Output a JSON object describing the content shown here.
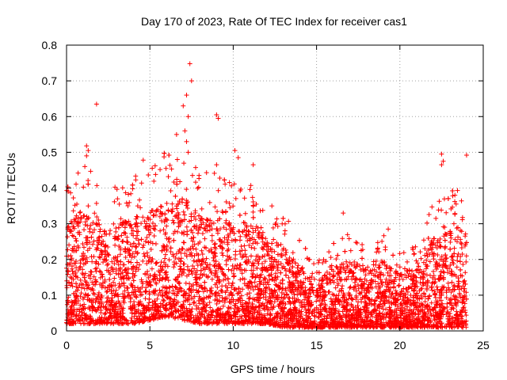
{
  "chart_data": {
    "type": "scatter",
    "title": "Day 170 of 2023, Rate Of TEC Index for receiver cas1",
    "xlabel": "GPS time / hours",
    "ylabel": "ROTI / TECUs",
    "xlim": [
      0,
      25
    ],
    "ylim": [
      0,
      0.8
    ],
    "xticks": [
      0,
      5,
      10,
      15,
      20,
      25
    ],
    "yticks": [
      0,
      0.1,
      0.2,
      0.3,
      0.4,
      0.5,
      0.6,
      0.7,
      0.8
    ],
    "xtick_labels": [
      "0",
      "5",
      "10",
      "15",
      "20",
      "25"
    ],
    "ytick_labels": [
      "0",
      "0.1",
      "0.2",
      "0.3",
      "0.4",
      "0.5",
      "0.6",
      "0.7",
      "0.8"
    ],
    "grid": true,
    "marker": "+",
    "color": "#ff0000",
    "notable_points": [
      {
        "x": 1.8,
        "y": 0.635
      },
      {
        "x": 7.4,
        "y": 0.748
      },
      {
        "x": 7.5,
        "y": 0.7
      },
      {
        "x": 7.2,
        "y": 0.66
      },
      {
        "x": 7.0,
        "y": 0.63
      },
      {
        "x": 7.3,
        "y": 0.6
      },
      {
        "x": 7.1,
        "y": 0.56
      },
      {
        "x": 7.2,
        "y": 0.53
      },
      {
        "x": 7.3,
        "y": 0.5
      },
      {
        "x": 6.6,
        "y": 0.55
      },
      {
        "x": 9.0,
        "y": 0.605
      },
      {
        "x": 9.1,
        "y": 0.595
      },
      {
        "x": 9.0,
        "y": 0.465
      },
      {
        "x": 1.2,
        "y": 0.518
      },
      {
        "x": 1.3,
        "y": 0.505
      },
      {
        "x": 1.2,
        "y": 0.49
      },
      {
        "x": 4.6,
        "y": 0.478
      },
      {
        "x": 10.1,
        "y": 0.505
      },
      {
        "x": 10.3,
        "y": 0.485
      },
      {
        "x": 11.2,
        "y": 0.465
      },
      {
        "x": 22.5,
        "y": 0.495
      },
      {
        "x": 22.6,
        "y": 0.475
      },
      {
        "x": 22.5,
        "y": 0.465
      },
      {
        "x": 24.0,
        "y": 0.492
      },
      {
        "x": 16.6,
        "y": 0.33
      },
      {
        "x": 19.3,
        "y": 0.285
      },
      {
        "x": 23.3,
        "y": 0.38
      }
    ],
    "density_profile": {
      "hours": [
        0,
        1,
        2,
        3,
        4,
        5,
        6,
        7,
        8,
        9,
        10,
        11,
        12,
        13,
        14,
        15,
        16,
        17,
        18,
        19,
        20,
        21,
        22,
        23,
        24
      ],
      "typical_max": [
        0.3,
        0.34,
        0.3,
        0.3,
        0.32,
        0.34,
        0.36,
        0.38,
        0.32,
        0.32,
        0.3,
        0.3,
        0.26,
        0.24,
        0.18,
        0.14,
        0.18,
        0.2,
        0.18,
        0.2,
        0.16,
        0.18,
        0.26,
        0.28,
        0.3
      ],
      "typical_min": [
        0.02,
        0.02,
        0.02,
        0.02,
        0.02,
        0.03,
        0.04,
        0.03,
        0.02,
        0.02,
        0.02,
        0.02,
        0.02,
        0.01,
        0.01,
        0.01,
        0.01,
        0.01,
        0.01,
        0.01,
        0.01,
        0.01,
        0.01,
        0.01,
        0.01
      ],
      "point_count": 5200
    }
  }
}
